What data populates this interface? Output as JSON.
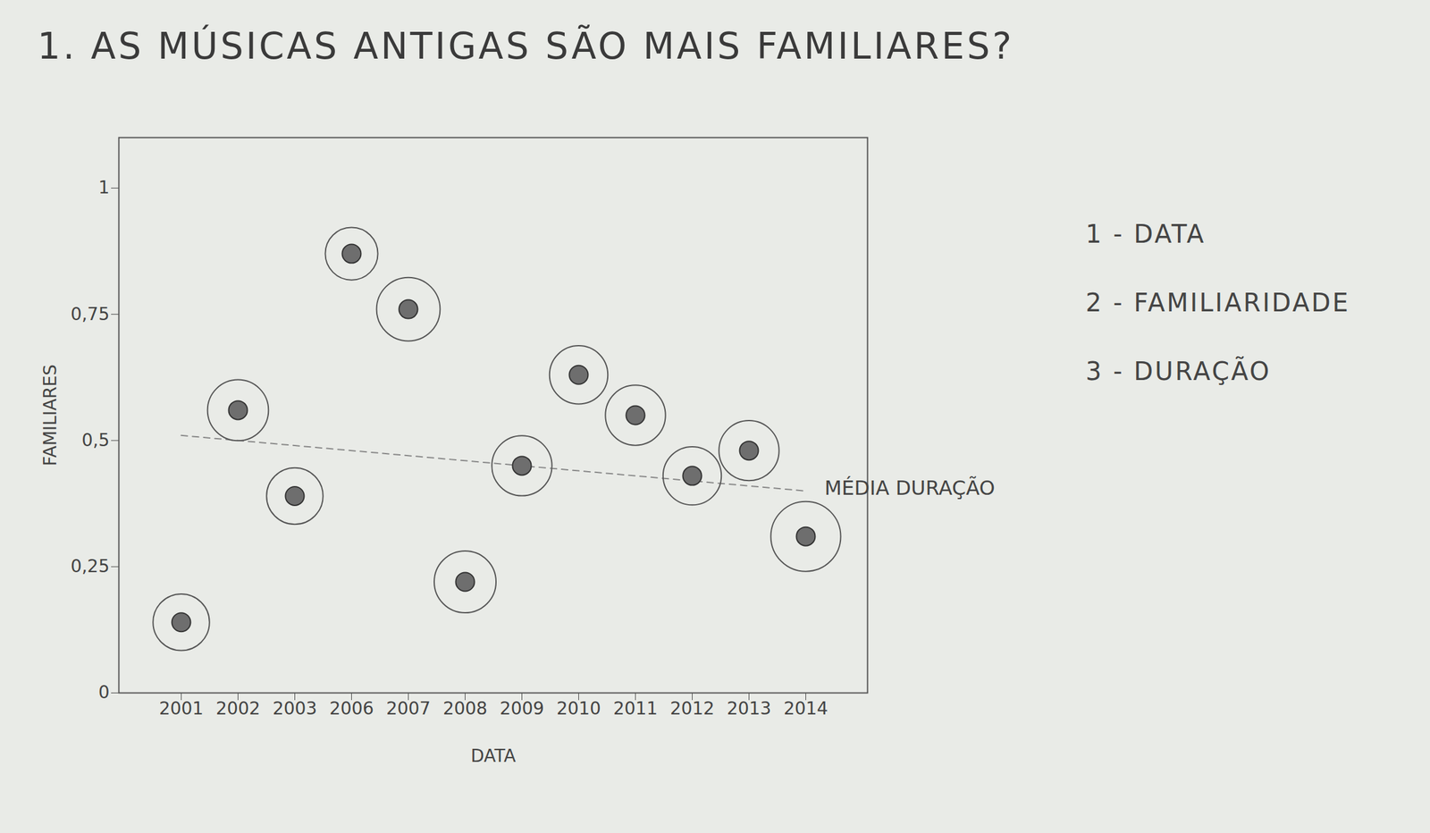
{
  "chart_data": {
    "type": "scatter",
    "title": "1. AS MÚSICAS ANTIGAS SÃO MAIS FAMILIARES?",
    "xlabel": "DATA",
    "ylabel": "FAMILIARES",
    "categories": [
      "2001",
      "2002",
      "2003",
      "2006",
      "2007",
      "2008",
      "2009",
      "2010",
      "2011",
      "2012",
      "2013",
      "2014"
    ],
    "values": [
      0.14,
      0.56,
      0.39,
      0.87,
      0.76,
      0.22,
      0.45,
      0.63,
      0.55,
      0.43,
      0.48,
      0.31
    ],
    "duration": [
      3.0,
      3.5,
      3.0,
      2.6,
      3.8,
      3.6,
      3.4,
      3.2,
      3.4,
      3.2,
      3.4,
      4.6
    ],
    "color": "#6e6e6e",
    "ylim": [
      0,
      1.1
    ],
    "yticks": [
      0,
      {
        "value": 0.25,
        "label": "0,25"
      },
      {
        "value": 0.5,
        "label": "0,5"
      },
      {
        "value": 0.75,
        "label": "0,75"
      },
      1
    ],
    "grid": false,
    "legend_items": [
      "1 - DATA",
      "2 - FAMILIARIDADE",
      "3 - DURAÇÃO"
    ],
    "annotation": {
      "text": "MÉDIA DURAÇÃO",
      "x": [
        "2001",
        "2014"
      ],
      "y": [
        0.51,
        0.4
      ]
    }
  }
}
